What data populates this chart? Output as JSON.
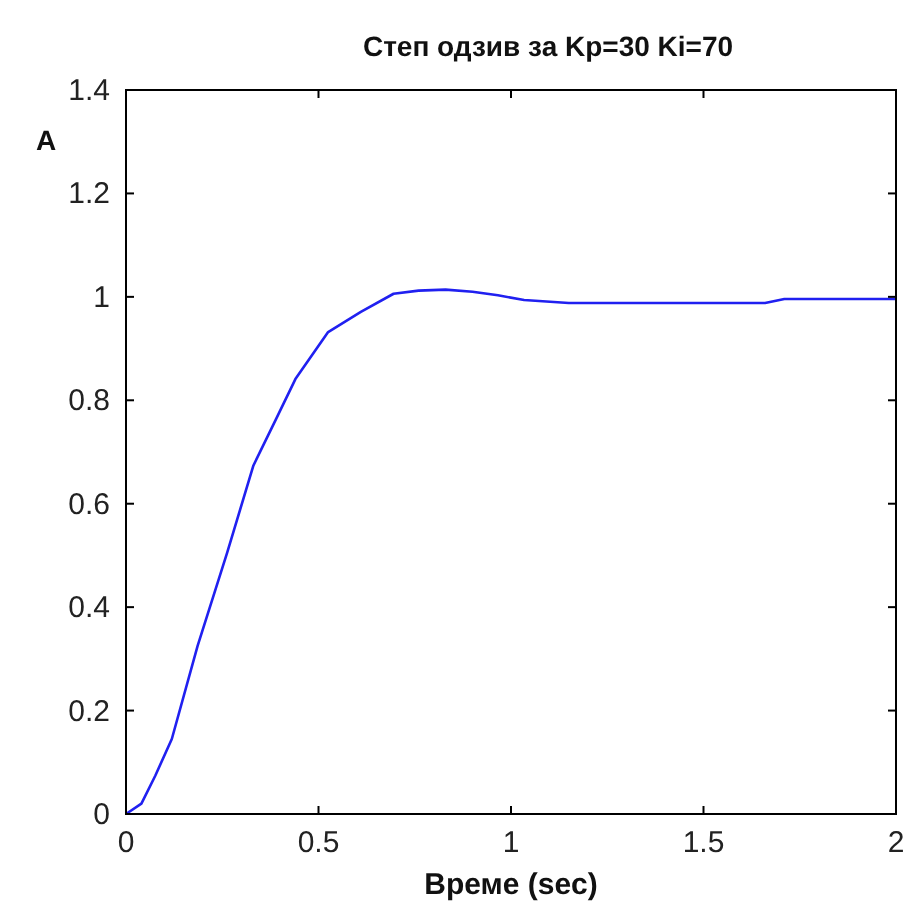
{
  "chart_data": {
    "type": "line",
    "title": "Степ одзив за Kp=30 Ki=70",
    "xlabel": "Време (sec)",
    "ylabel": "A",
    "xlim": [
      0,
      2
    ],
    "ylim": [
      0,
      1.4
    ],
    "xticks": [
      0,
      0.5,
      1,
      1.5,
      2
    ],
    "yticks": [
      0,
      0.2,
      0.4,
      0.6,
      0.8,
      1,
      1.2,
      1.4
    ],
    "grid": false,
    "series": [
      {
        "color": "#2020f0",
        "x": [
          0,
          0.04,
          0.076,
          0.119,
          0.186,
          0.263,
          0.331,
          0.39,
          0.44,
          0.525,
          0.61,
          0.695,
          0.76,
          0.83,
          0.9,
          0.966,
          1.034,
          1.15,
          1.4,
          1.66,
          1.71,
          2
        ],
        "values": [
          0,
          0.02,
          0.074,
          0.145,
          0.325,
          0.506,
          0.674,
          0.764,
          0.841,
          0.932,
          0.971,
          1.006,
          1.012,
          1.014,
          1.01,
          1.003,
          0.994,
          0.988,
          0.988,
          0.988,
          0.996,
          0.996
        ]
      }
    ]
  }
}
